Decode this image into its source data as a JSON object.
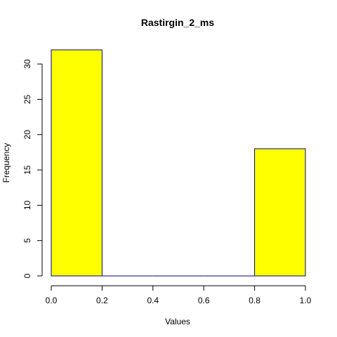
{
  "chart_data": {
    "type": "bar",
    "title": "Rastirgin_2_ms",
    "xlabel": "Values",
    "ylabel": "Frequency",
    "bins": [
      {
        "from": 0.0,
        "to": 0.2,
        "count": 32
      },
      {
        "from": 0.2,
        "to": 0.4,
        "count": 0
      },
      {
        "from": 0.4,
        "to": 0.6,
        "count": 0
      },
      {
        "from": 0.6,
        "to": 0.8,
        "count": 0
      },
      {
        "from": 0.8,
        "to": 1.0,
        "count": 18
      }
    ],
    "xlim": [
      0,
      1
    ],
    "ylim": [
      0,
      32
    ],
    "x_ticks": [
      "0.0",
      "0.2",
      "0.4",
      "0.6",
      "0.8",
      "1.0"
    ],
    "x_tick_values": [
      0,
      0.2,
      0.4,
      0.6,
      0.8,
      1.0
    ],
    "y_ticks": [
      "0",
      "5",
      "10",
      "15",
      "20",
      "25",
      "30"
    ],
    "y_tick_values": [
      0,
      5,
      10,
      15,
      20,
      25,
      30
    ],
    "bar_color": "#ffff00",
    "bar_border_color": "#00008b",
    "grid": false,
    "legend": "none"
  }
}
